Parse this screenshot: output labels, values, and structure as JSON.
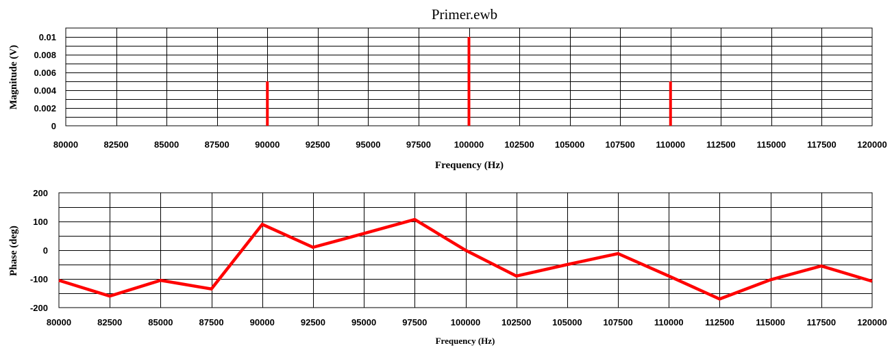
{
  "window_title": "Primer.ewb",
  "colors": {
    "series": "#ff0000",
    "grid": "#000000",
    "background": "#ffffff"
  },
  "chart_data": [
    {
      "type": "bar",
      "title": "Primer.ewb",
      "xlabel": "Frequency (Hz)",
      "ylabel": "Magnitude (V)",
      "xlim": [
        80000,
        120000
      ],
      "ylim": [
        0,
        0.011
      ],
      "x_ticks": [
        "80000",
        "82500",
        "85000",
        "87500",
        "90000",
        "92500",
        "95000",
        "97500",
        "100000",
        "102500",
        "105000",
        "107500",
        "110000",
        "112500",
        "115000",
        "117500",
        "120000"
      ],
      "y_ticks": [
        "0",
        "0.002",
        "0.004",
        "0.006",
        "0.008",
        "0.01"
      ],
      "grid": true,
      "x": [
        90000,
        100000,
        110000
      ],
      "values": [
        0.005,
        0.01,
        0.005
      ]
    },
    {
      "type": "line",
      "xlabel": "Frequency (Hz)",
      "ylabel": "Phase (deg)",
      "xlim": [
        80000,
        120000
      ],
      "ylim": [
        -200,
        200
      ],
      "x_ticks": [
        "80000",
        "82500",
        "85000",
        "87500",
        "90000",
        "92500",
        "95000",
        "97500",
        "100000",
        "102500",
        "105000",
        "107500",
        "110000",
        "112500",
        "115000",
        "117500",
        "120000"
      ],
      "y_ticks": [
        "200",
        "100",
        "0",
        "-100",
        "-200"
      ],
      "grid": true,
      "x": [
        80000,
        82500,
        85000,
        87500,
        90000,
        92500,
        95000,
        97500,
        100000,
        102500,
        105000,
        107500,
        110000,
        112500,
        115000,
        117500,
        120000
      ],
      "values": [
        -105,
        -160,
        -105,
        -135,
        90,
        10,
        58,
        107,
        0,
        -90,
        -50,
        -12,
        -90,
        -170,
        -103,
        -55,
        -108
      ]
    }
  ]
}
